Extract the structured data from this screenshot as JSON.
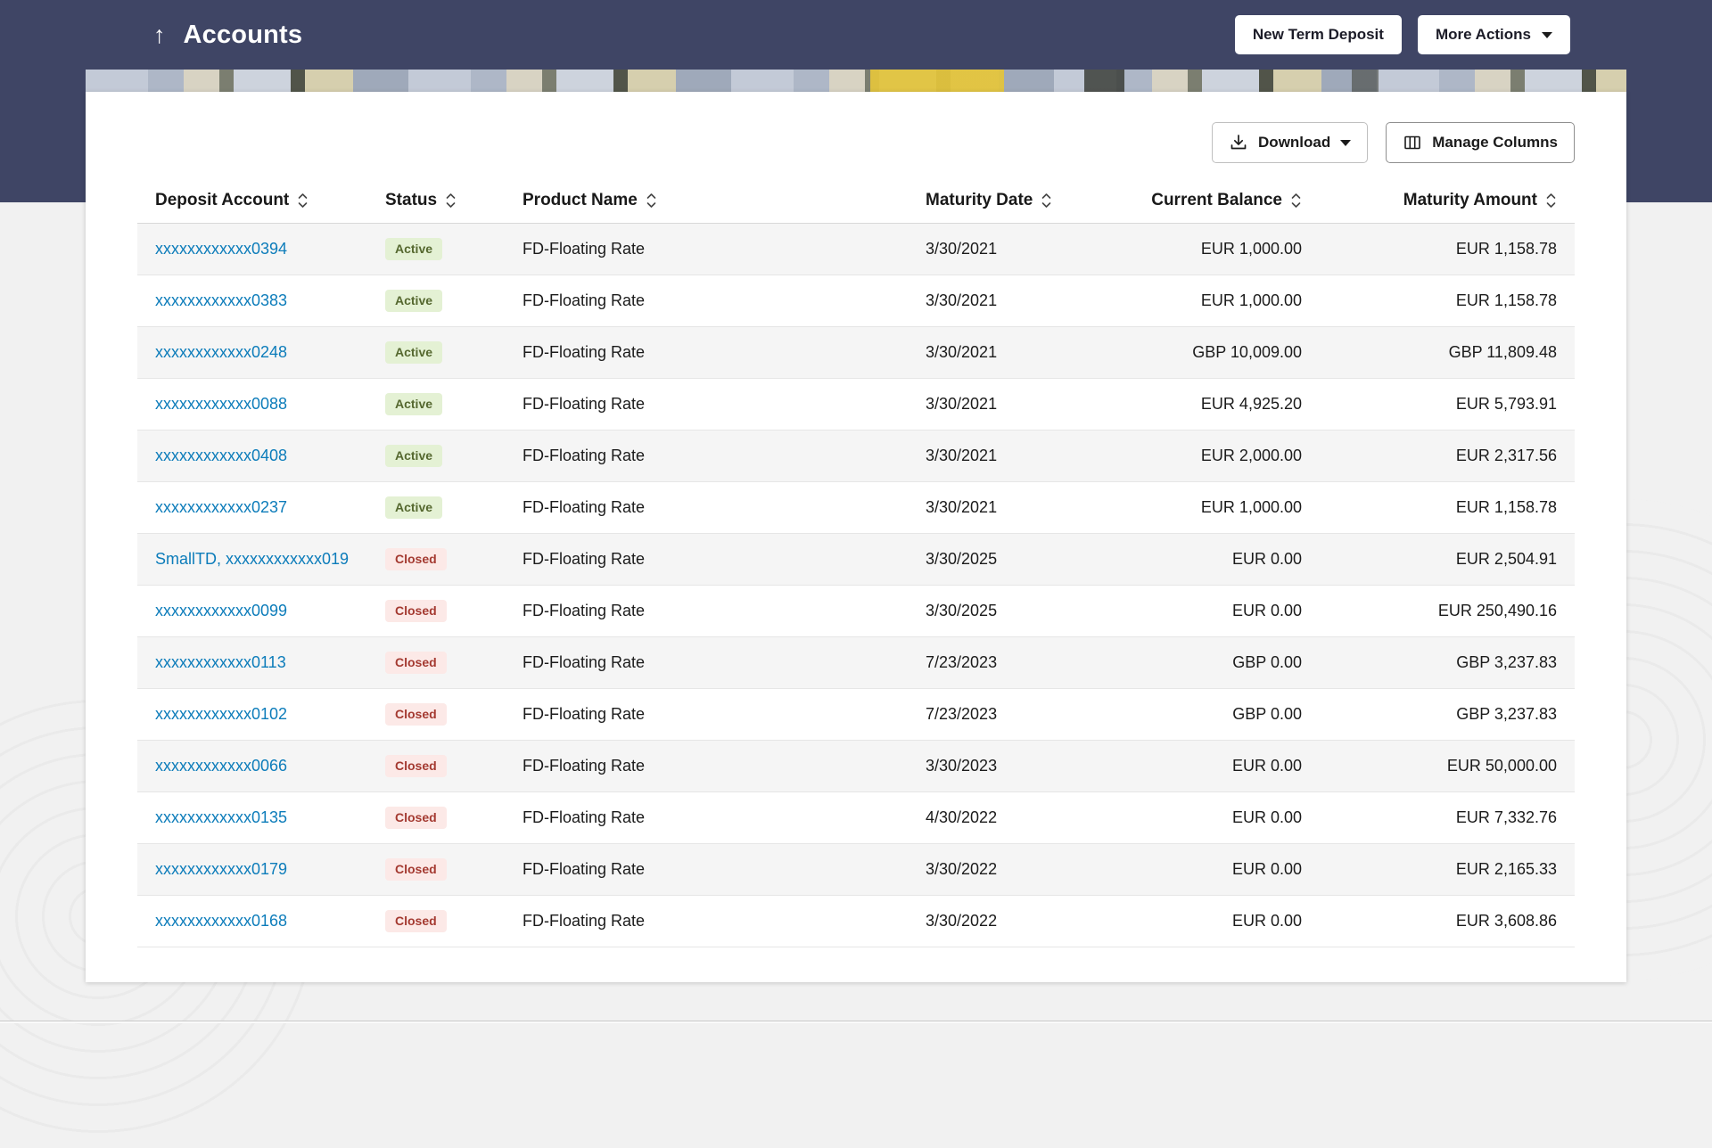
{
  "colors": {
    "header_bg": "#3f4565",
    "page_bg": "#f1f1f1",
    "link": "#0c7cba",
    "active_badge_bg": "#e4f1d4",
    "active_badge_text": "#55682f",
    "closed_badge_bg": "#fce9e7",
    "closed_badge_text": "#a43a31",
    "stripe": "#f5f5f5"
  },
  "header": {
    "up_arrow_glyph": "↑",
    "title": "Accounts",
    "new_term_deposit_label": "New Term Deposit",
    "more_actions_label": "More Actions"
  },
  "toolbar": {
    "download_label": "Download",
    "manage_columns_label": "Manage Columns"
  },
  "table": {
    "columns": [
      {
        "label": "Deposit Account",
        "key": "account",
        "align": "left",
        "sortable": true
      },
      {
        "label": "Status",
        "key": "status",
        "align": "left",
        "sortable": true
      },
      {
        "label": "Product Name",
        "key": "product",
        "align": "left",
        "sortable": true
      },
      {
        "label": "Maturity Date",
        "key": "maturity_date",
        "align": "left",
        "sortable": true
      },
      {
        "label": "Current Balance",
        "key": "current_balance",
        "align": "right",
        "sortable": true
      },
      {
        "label": "Maturity Amount",
        "key": "maturity_amount",
        "align": "right",
        "sortable": true
      }
    ],
    "rows": [
      {
        "account": "xxxxxxxxxxxx0394",
        "status": "Active",
        "product": "FD-Floating Rate",
        "maturity_date": "3/30/2021",
        "current_balance": "EUR 1,000.00",
        "maturity_amount": "EUR 1,158.78"
      },
      {
        "account": "xxxxxxxxxxxx0383",
        "status": "Active",
        "product": "FD-Floating Rate",
        "maturity_date": "3/30/2021",
        "current_balance": "EUR 1,000.00",
        "maturity_amount": "EUR 1,158.78"
      },
      {
        "account": "xxxxxxxxxxxx0248",
        "status": "Active",
        "product": "FD-Floating Rate",
        "maturity_date": "3/30/2021",
        "current_balance": "GBP 10,009.00",
        "maturity_amount": "GBP 11,809.48"
      },
      {
        "account": "xxxxxxxxxxxx0088",
        "status": "Active",
        "product": "FD-Floating Rate",
        "maturity_date": "3/30/2021",
        "current_balance": "EUR 4,925.20",
        "maturity_amount": "EUR 5,793.91"
      },
      {
        "account": "xxxxxxxxxxxx0408",
        "status": "Active",
        "product": "FD-Floating Rate",
        "maturity_date": "3/30/2021",
        "current_balance": "EUR 2,000.00",
        "maturity_amount": "EUR 2,317.56"
      },
      {
        "account": "xxxxxxxxxxxx0237",
        "status": "Active",
        "product": "FD-Floating Rate",
        "maturity_date": "3/30/2021",
        "current_balance": "EUR 1,000.00",
        "maturity_amount": "EUR 1,158.78"
      },
      {
        "account": "SmallTD, xxxxxxxxxxxx019",
        "status": "Closed",
        "product": "FD-Floating Rate",
        "maturity_date": "3/30/2025",
        "current_balance": "EUR 0.00",
        "maturity_amount": "EUR 2,504.91"
      },
      {
        "account": "xxxxxxxxxxxx0099",
        "status": "Closed",
        "product": "FD-Floating Rate",
        "maturity_date": "3/30/2025",
        "current_balance": "EUR 0.00",
        "maturity_amount": "EUR 250,490.16"
      },
      {
        "account": "xxxxxxxxxxxx0113",
        "status": "Closed",
        "product": "FD-Floating Rate",
        "maturity_date": "7/23/2023",
        "current_balance": "GBP 0.00",
        "maturity_amount": "GBP 3,237.83"
      },
      {
        "account": "xxxxxxxxxxxx0102",
        "status": "Closed",
        "product": "FD-Floating Rate",
        "maturity_date": "7/23/2023",
        "current_balance": "GBP 0.00",
        "maturity_amount": "GBP 3,237.83"
      },
      {
        "account": "xxxxxxxxxxxx0066",
        "status": "Closed",
        "product": "FD-Floating Rate",
        "maturity_date": "3/30/2023",
        "current_balance": "EUR 0.00",
        "maturity_amount": "EUR 50,000.00"
      },
      {
        "account": "xxxxxxxxxxxx0135",
        "status": "Closed",
        "product": "FD-Floating Rate",
        "maturity_date": "4/30/2022",
        "current_balance": "EUR 0.00",
        "maturity_amount": "EUR 7,332.76"
      },
      {
        "account": "xxxxxxxxxxxx0179",
        "status": "Closed",
        "product": "FD-Floating Rate",
        "maturity_date": "3/30/2022",
        "current_balance": "EUR 0.00",
        "maturity_amount": "EUR 2,165.33"
      },
      {
        "account": "xxxxxxxxxxxx0168",
        "status": "Closed",
        "product": "FD-Floating Rate",
        "maturity_date": "3/30/2022",
        "current_balance": "EUR 0.00",
        "maturity_amount": "EUR 3,608.86"
      }
    ]
  }
}
